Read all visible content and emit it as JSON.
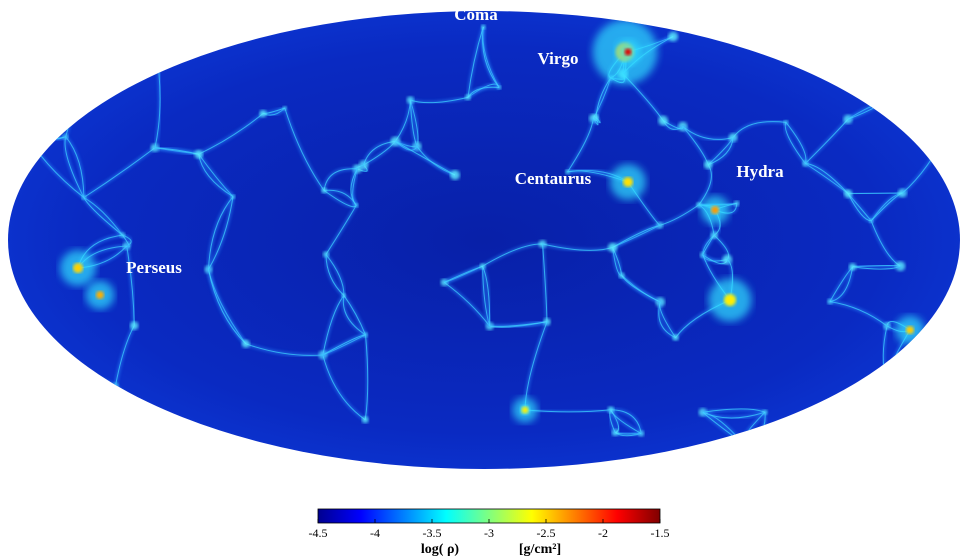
{
  "map": {
    "labels": [
      "Coma",
      "Virgo",
      "Centaurus",
      "Hydra",
      "Perseus"
    ],
    "colorbar": {
      "lim": [
        -4.5,
        -1.5
      ],
      "ticks": [
        -4.5,
        -4.0,
        -3.5,
        -3.0,
        -2.5,
        -2.0,
        -1.5
      ],
      "label": "log( ρ)",
      "unit": "[g/cm²]"
    }
  }
}
